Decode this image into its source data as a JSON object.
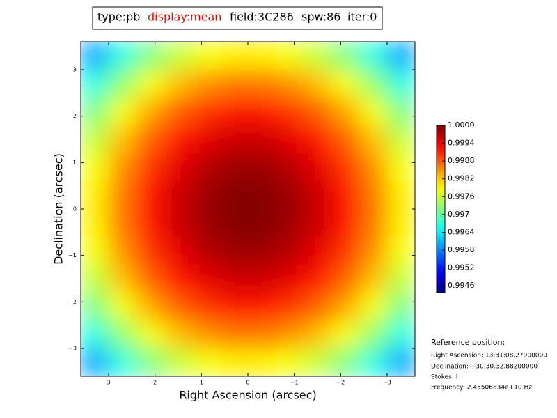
{
  "chart_data": {
    "type": "heatmap",
    "title_parts": [
      {
        "text": "type:pb",
        "color": "#000000"
      },
      {
        "text": "display:mean",
        "color": "#ff0000"
      },
      {
        "text": "field:3C286",
        "color": "#000000"
      },
      {
        "text": "spw:86",
        "color": "#000000"
      },
      {
        "text": "iter:0",
        "color": "#000000"
      }
    ],
    "x_label": "Right Ascension (arcsec)",
    "y_label": "Declination (arcsec)",
    "xlim": [
      3.6,
      -3.6
    ],
    "ylim": [
      -3.6,
      3.6
    ],
    "xticks": [
      3,
      2,
      1,
      0,
      {
        "value": -1,
        "label": "−1"
      },
      {
        "value": -2,
        "label": "−2"
      },
      {
        "value": -3,
        "label": "−3"
      }
    ],
    "yticks": [
      {
        "value": -3,
        "label": "−3"
      },
      {
        "value": -2,
        "label": "−2"
      },
      {
        "value": -1,
        "label": "−1"
      },
      0,
      1,
      2,
      3
    ],
    "x": [
      3.3,
      2.7,
      2.1,
      1.5,
      0.9,
      0.3,
      -0.3,
      -0.9,
      -1.5,
      -2.1,
      -2.7,
      -3.3
    ],
    "y": [
      3.3,
      2.7,
      2.1,
      1.5,
      0.9,
      0.3,
      -0.3,
      -0.9,
      -1.5,
      -2.1,
      -2.7,
      -3.3
    ],
    "z": [
      [
        0.99597,
        0.99664,
        0.99717,
        0.99757,
        0.99784,
        0.99797,
        0.99797,
        0.99784,
        0.99757,
        0.99717,
        0.99664,
        0.99597
      ],
      [
        0.99664,
        0.9973,
        0.99784,
        0.99824,
        0.9985,
        0.99864,
        0.99864,
        0.9985,
        0.99824,
        0.99784,
        0.9973,
        0.99664
      ],
      [
        0.99717,
        0.99784,
        0.99837,
        0.99877,
        0.99903,
        0.99917,
        0.99917,
        0.99903,
        0.99877,
        0.99837,
        0.99784,
        0.99717
      ],
      [
        0.99757,
        0.99824,
        0.99877,
        0.99917,
        0.99943,
        0.99957,
        0.99957,
        0.99943,
        0.99917,
        0.99877,
        0.99824,
        0.99757
      ],
      [
        0.99784,
        0.9985,
        0.99903,
        0.99943,
        0.9997,
        0.99983,
        0.99983,
        0.9997,
        0.99943,
        0.99903,
        0.9985,
        0.99784
      ],
      [
        0.99797,
        0.99864,
        0.99917,
        0.99957,
        0.99983,
        0.99997,
        0.99997,
        0.99983,
        0.99957,
        0.99917,
        0.99864,
        0.99797
      ],
      [
        0.99797,
        0.99864,
        0.99917,
        0.99957,
        0.99983,
        0.99997,
        0.99997,
        0.99983,
        0.99957,
        0.99917,
        0.99864,
        0.99797
      ],
      [
        0.99784,
        0.9985,
        0.99903,
        0.99943,
        0.9997,
        0.99983,
        0.99983,
        0.9997,
        0.99943,
        0.99903,
        0.9985,
        0.99784
      ],
      [
        0.99757,
        0.99824,
        0.99877,
        0.99917,
        0.99943,
        0.99957,
        0.99957,
        0.99943,
        0.99917,
        0.99877,
        0.99824,
        0.99757
      ],
      [
        0.99717,
        0.99784,
        0.99837,
        0.99877,
        0.99903,
        0.99917,
        0.99917,
        0.99903,
        0.99877,
        0.99837,
        0.99784,
        0.99717
      ],
      [
        0.99664,
        0.9973,
        0.99784,
        0.99824,
        0.9985,
        0.99864,
        0.99864,
        0.9985,
        0.99824,
        0.99784,
        0.9973,
        0.99664
      ],
      [
        0.99597,
        0.99664,
        0.99717,
        0.99757,
        0.99784,
        0.99797,
        0.99797,
        0.99784,
        0.99757,
        0.99717,
        0.99664,
        0.99597
      ]
    ],
    "colormap": "jet",
    "clim": [
      0.99437,
      1.0
    ],
    "colorbar_ticks": [
      {
        "value": 1.0,
        "label": "1.0000"
      },
      0.9994,
      0.9988,
      0.9982,
      0.9976,
      0.997,
      0.9964,
      0.9958,
      0.9952,
      0.9946
    ],
    "reference": {
      "heading": "Reference position:",
      "lines": [
        "Right Ascension: 13:31:08.27900000",
        "Declination: +30.30.32.88200000",
        "Stokes: I",
        "Frequency: 2.45506834e+10 Hz"
      ]
    }
  }
}
